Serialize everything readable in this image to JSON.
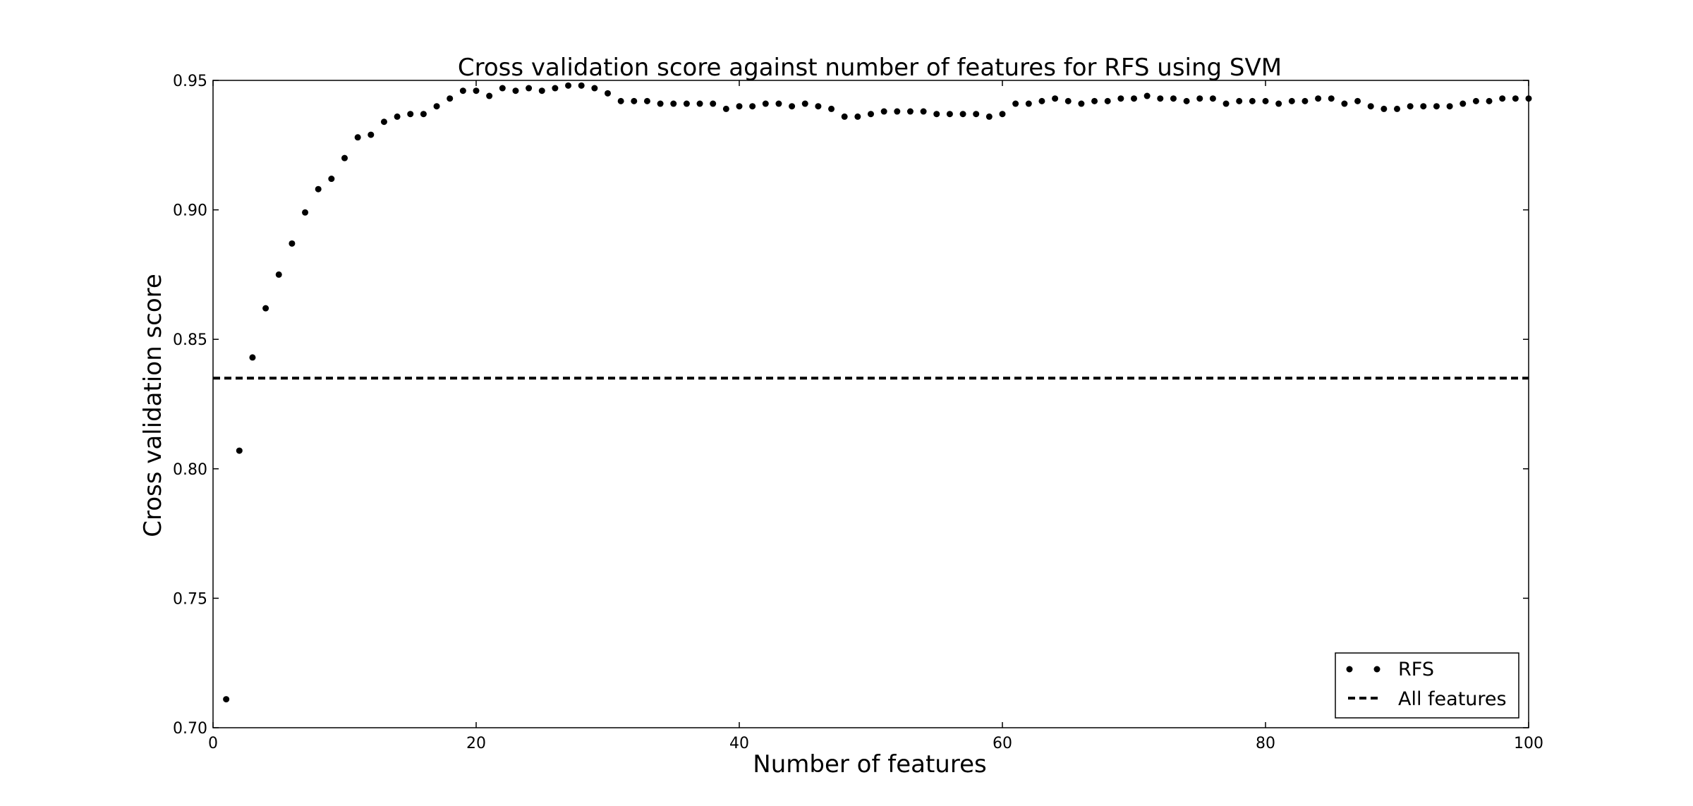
{
  "chart_data": {
    "type": "scatter",
    "title": "Cross validation score against number of features for RFS using SVM",
    "xlabel": "Number of features",
    "ylabel": "Cross validation score",
    "xlim": [
      0,
      100
    ],
    "ylim": [
      0.7,
      0.95
    ],
    "x_ticks": [
      "0",
      "20",
      "40",
      "60",
      "80",
      "100"
    ],
    "y_ticks": [
      "0.70",
      "0.75",
      "0.80",
      "0.85",
      "0.90",
      "0.95"
    ],
    "grid": false,
    "legend_placement": "lower-right",
    "series": [
      {
        "name": "RFS",
        "style": "dots",
        "color": "#000000",
        "x": [
          1,
          2,
          3,
          4,
          5,
          6,
          7,
          8,
          9,
          10,
          11,
          12,
          13,
          14,
          15,
          16,
          17,
          18,
          19,
          20,
          21,
          22,
          23,
          24,
          25,
          26,
          27,
          28,
          29,
          30,
          31,
          32,
          33,
          34,
          35,
          36,
          37,
          38,
          39,
          40,
          41,
          42,
          43,
          44,
          45,
          46,
          47,
          48,
          49,
          50,
          51,
          52,
          53,
          54,
          55,
          56,
          57,
          58,
          59,
          60,
          61,
          62,
          63,
          64,
          65,
          66,
          67,
          68,
          69,
          70,
          71,
          72,
          73,
          74,
          75,
          76,
          77,
          78,
          79,
          80,
          81,
          82,
          83,
          84,
          85,
          86,
          87,
          88,
          89,
          90,
          91,
          92,
          93,
          94,
          95,
          96,
          97,
          98,
          99,
          100
        ],
        "y": [
          0.711,
          0.807,
          0.843,
          0.862,
          0.875,
          0.887,
          0.899,
          0.908,
          0.912,
          0.92,
          0.928,
          0.929,
          0.934,
          0.936,
          0.937,
          0.937,
          0.94,
          0.943,
          0.946,
          0.946,
          0.944,
          0.947,
          0.946,
          0.947,
          0.946,
          0.947,
          0.948,
          0.948,
          0.947,
          0.945,
          0.942,
          0.942,
          0.942,
          0.941,
          0.941,
          0.941,
          0.941,
          0.941,
          0.939,
          0.94,
          0.94,
          0.941,
          0.941,
          0.94,
          0.941,
          0.94,
          0.939,
          0.936,
          0.936,
          0.937,
          0.938,
          0.938,
          0.938,
          0.938,
          0.937,
          0.937,
          0.937,
          0.937,
          0.936,
          0.937,
          0.941,
          0.941,
          0.942,
          0.943,
          0.942,
          0.941,
          0.942,
          0.942,
          0.943,
          0.943,
          0.944,
          0.943,
          0.943,
          0.942,
          0.943,
          0.943,
          0.941,
          0.942,
          0.942,
          0.942,
          0.941,
          0.942,
          0.942,
          0.943,
          0.943,
          0.941,
          0.942,
          0.94,
          0.939,
          0.939,
          0.94,
          0.94,
          0.94,
          0.94,
          0.941,
          0.942,
          0.942,
          0.943,
          0.943,
          0.943
        ]
      },
      {
        "name": "All features",
        "style": "dashed-line",
        "color": "#000000",
        "y": 0.835
      }
    ]
  }
}
